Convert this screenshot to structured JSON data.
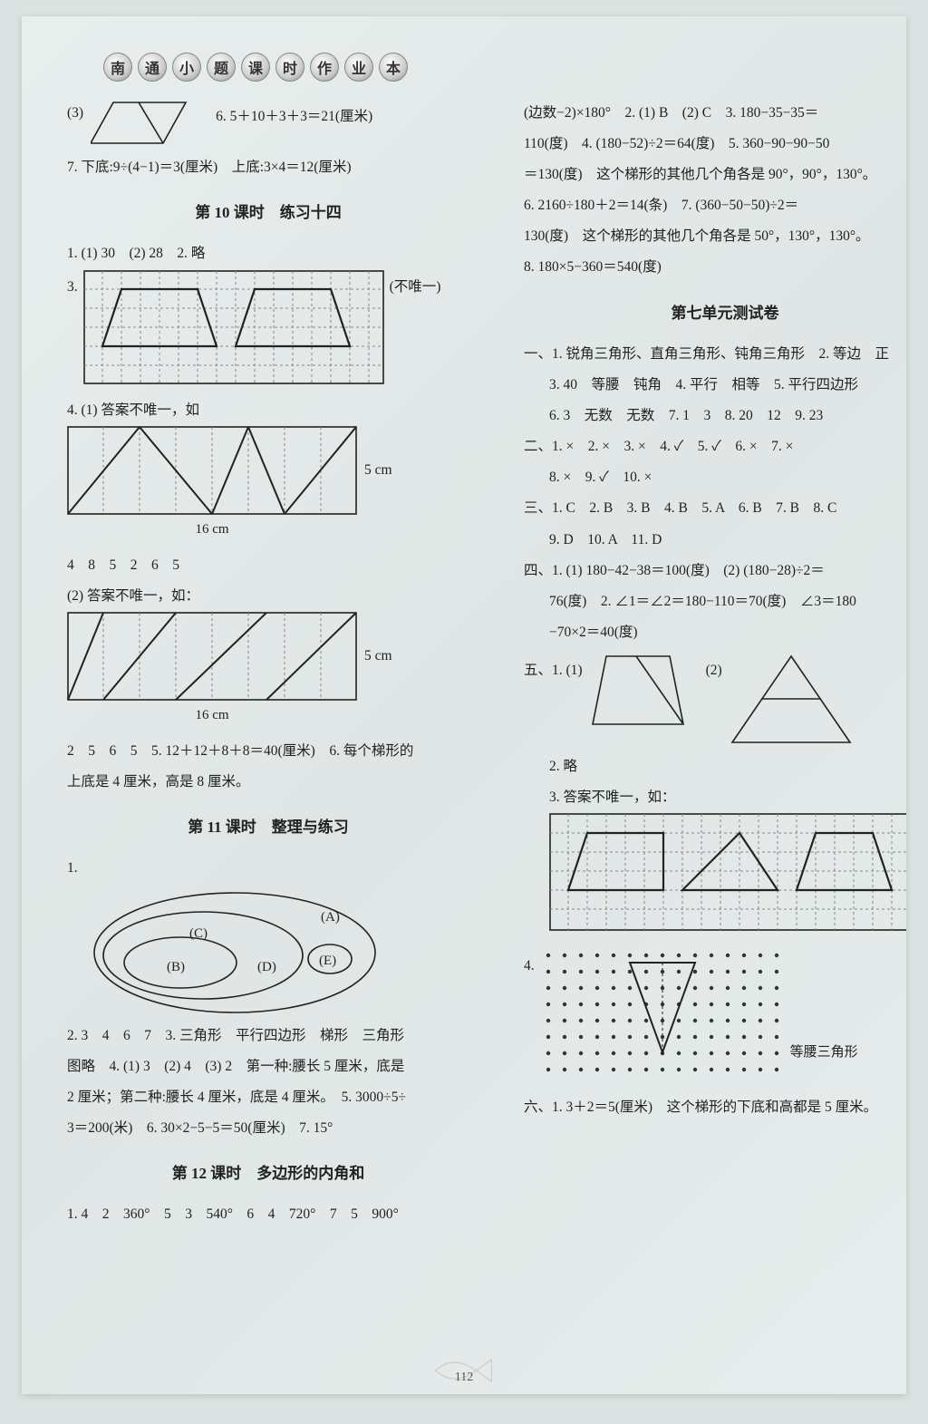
{
  "header": {
    "chars": [
      "南",
      "通",
      "小",
      "题",
      "课",
      "时",
      "作",
      "业",
      "本"
    ]
  },
  "left": {
    "l1_prefix": "(3)",
    "l1_right": "6.  5＋10＋3＋3＝21(厘米)",
    "l2": "7. 下底:9÷(4−1)＝3(厘米)　上底:3×4＝12(厘米)",
    "title10": "第 10 课时　练习十四",
    "l3": "1. (1) 30　(2) 28　2. 略",
    "l4_prefix": "3.",
    "l4_right": "(不唯一)",
    "l5": "4. (1) 答案不唯一，如",
    "dim_5cm": "5 cm",
    "dim_16cm": "16 cm",
    "seq1": "4　8　5　2　6　5",
    "l6": "(2) 答案不唯一，如：",
    "seq2": "2　5　6　5　5. 12＋12＋8＋8＝40(厘米)　6. 每个梯形的",
    "l7": "上底是 4 厘米，高是 8 厘米。",
    "title11": "第 11 课时　整理与练习",
    "l8": "1.",
    "venn": {
      "A": "(A)",
      "B": "(B)",
      "C": "(C)",
      "D": "(D)",
      "E": "(E)"
    },
    "l9": "2. 3　4　6　7　3. 三角形　平行四边形　梯形　三角形",
    "l10": "图略　4. (1) 3　(2) 4　(3) 2　第一种:腰长 5 厘米，底是",
    "l11": "2 厘米；第二种:腰长 4 厘米，底是 4 厘米。　5. 3000÷5÷",
    "l12": "3＝200(米)　6. 30×2−5−5＝50(厘米)　7. 15°",
    "title12": "第 12 课时　多边形的内角和",
    "l13": "1. 4　2　360°　5　3　540°　6　4　720°　7　5　900°"
  },
  "right": {
    "r1": "(边数−2)×180°　2. (1) B　(2) C　3. 180−35−35＝",
    "r2": "110(度)　4. (180−52)÷2＝64(度)　5. 360−90−90−50",
    "r3": "＝130(度)　这个梯形的其他几个角各是 90°，90°，130°。",
    "r4": "6. 2160÷180＋2＝14(条)　7. (360−50−50)÷2＝",
    "r5": "130(度)　这个梯形的其他几个角各是 50°，130°，130°。",
    "r6": "8. 180×5−360＝540(度)",
    "title7": "第七单元测试卷",
    "r7": "一、1. 锐角三角形、直角三角形、钝角三角形　2. 等边　正",
    "r8": "3. 40　等腰　钝角　4. 平行　相等　5. 平行四边形",
    "r9": "6. 3　无数　无数　7. 1　3　8. 20　12　9. 23",
    "r10": "二、1. ×　2. ×　3. ×　4. ✓　5. ✓　6. ×　7. ×",
    "r11": "8. ×　9. ✓　10. ×",
    "r12": "三、1. C　2. B　3. B　4. B　5. A　6. B　7. B　8. C",
    "r13": "9. D　10. A　11. D",
    "r14": "四、1. (1) 180−42−38＝100(度)　(2) (180−28)÷2＝",
    "r15": "76(度)　2. ∠1＝∠2＝180−110＝70(度)　∠3＝180",
    "r16": "−70×2＝40(度)",
    "r17_prefix": "五、1. (1)",
    "r17_mid": "(2)",
    "r18": "2. 略",
    "r19": "3. 答案不唯一，如：",
    "r20_label": "等腰三角形",
    "r20_prefix": "4.",
    "r21": "六、1. 3＋2＝5(厘米)　这个梯形的下底和高都是 5 厘米。"
  },
  "page_num": "112",
  "colors": {
    "ink": "#222222",
    "grid": "#777777",
    "dash": "#888888",
    "dotfill": "#333333",
    "bg": "#dbe3e2"
  }
}
